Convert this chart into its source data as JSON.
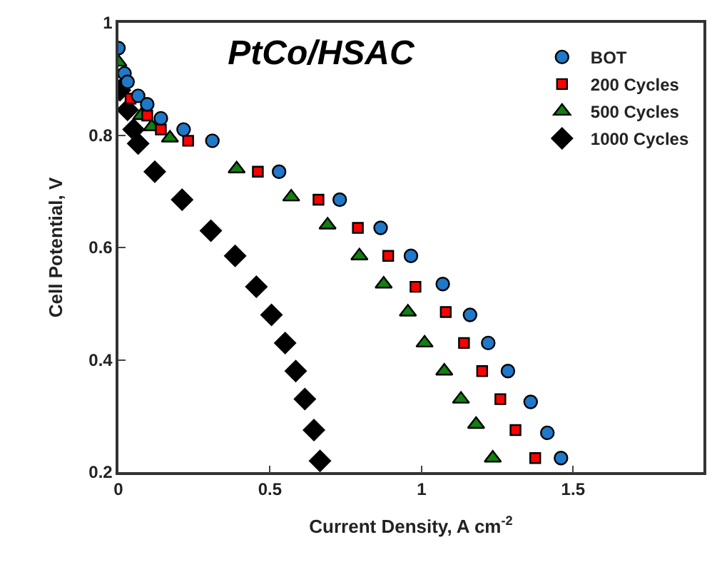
{
  "chart_data": {
    "type": "scatter",
    "title": "PtCo/HSAC",
    "xlabel": "Current Density, A cm$^{-2}$",
    "ylabel": "Cell Potential, V",
    "xlim": [
      0,
      1.93
    ],
    "ylim": [
      0.2,
      1
    ],
    "xticks": [
      0,
      0.5,
      1,
      1.5
    ],
    "yticks": [
      0.2,
      0.4,
      0.6,
      0.8,
      1
    ],
    "legend": "top right",
    "series": [
      {
        "name": "BOT",
        "color": "#1f78c8",
        "marker": "circle",
        "x": [
          0,
          0.02,
          0.03,
          0.065,
          0.095,
          0.14,
          0.215,
          0.31,
          0.53,
          0.73,
          0.865,
          0.965,
          1.07,
          1.16,
          1.22,
          1.285,
          1.36,
          1.415,
          1.46
        ],
        "values": [
          0.955,
          0.91,
          0.895,
          0.87,
          0.855,
          0.83,
          0.81,
          0.79,
          0.735,
          0.685,
          0.635,
          0.585,
          0.535,
          0.48,
          0.43,
          0.38,
          0.325,
          0.27,
          0.225
        ]
      },
      {
        "name": "200 Cycles",
        "color": "#ff0000",
        "marker": "square",
        "x": [
          0.04,
          0.095,
          0.14,
          0.23,
          0.46,
          0.66,
          0.79,
          0.89,
          0.98,
          1.08,
          1.14,
          1.2,
          1.26,
          1.31,
          1.375
        ],
        "values": [
          0.865,
          0.835,
          0.81,
          0.79,
          0.735,
          0.685,
          0.635,
          0.585,
          0.53,
          0.485,
          0.43,
          0.38,
          0.33,
          0.275,
          0.225
        ]
      },
      {
        "name": "500 Cycles",
        "color": "#118011",
        "marker": "triangle",
        "x": [
          0,
          0.04,
          0.075,
          0.11,
          0.17,
          0.39,
          0.57,
          0.69,
          0.795,
          0.875,
          0.955,
          1.01,
          1.075,
          1.13,
          1.18,
          1.235
        ],
        "values": [
          0.93,
          null,
          0.835,
          0.815,
          0.795,
          0.74,
          0.69,
          0.64,
          0.585,
          0.535,
          0.485,
          0.43,
          0.38,
          0.33,
          0.285,
          0.225
        ]
      },
      {
        "name": "1000 Cycles",
        "color": "#000000",
        "marker": "diamond",
        "x": [
          0.005,
          0.03,
          0.05,
          0.065,
          0.12,
          0.21,
          0.305,
          0.385,
          0.455,
          0.505,
          0.55,
          0.585,
          0.615,
          0.645,
          0.665
        ],
        "values": [
          0.88,
          0.845,
          0.81,
          0.785,
          0.735,
          0.685,
          0.63,
          0.585,
          0.53,
          0.48,
          0.43,
          0.38,
          0.33,
          0.275,
          0.22
        ]
      }
    ]
  }
}
